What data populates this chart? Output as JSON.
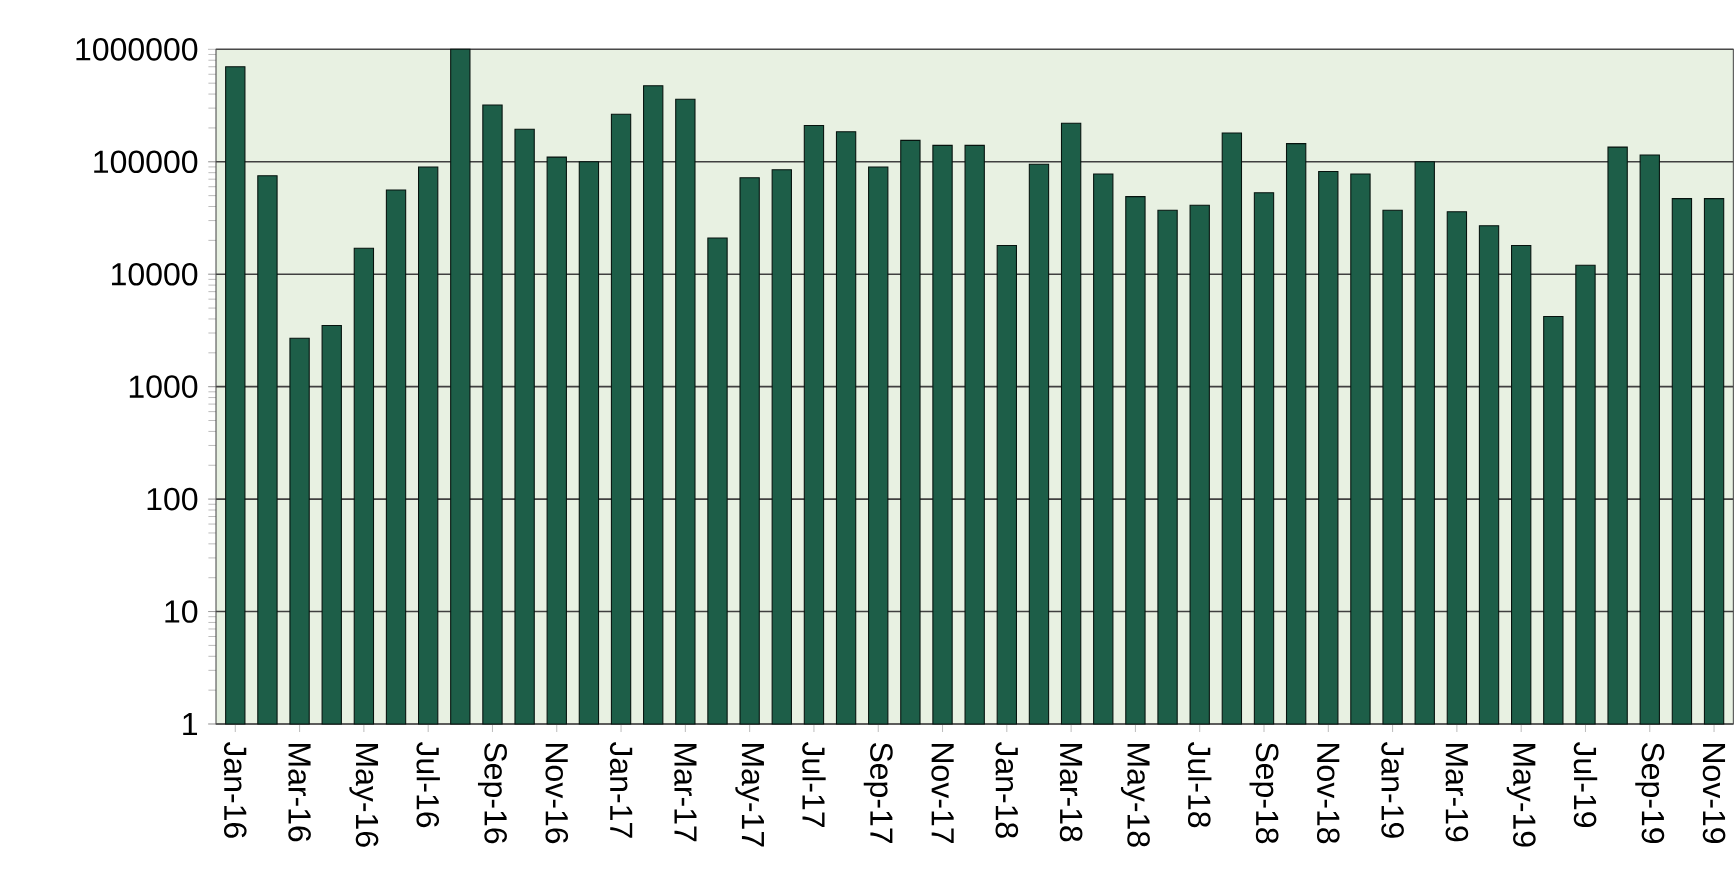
{
  "chart_data": {
    "type": "bar",
    "log": "y",
    "grid": "y",
    "color": "#1d5e48",
    "categories": [
      "Jan-16",
      null,
      "Mar-16",
      null,
      "May-16",
      null,
      "Jul-16",
      null,
      "Sep-16",
      null,
      "Nov-16",
      null,
      "Jan-17",
      null,
      "Mar-17",
      null,
      "May-17",
      null,
      "Jul-17",
      null,
      "Sep-17",
      null,
      "Nov-17",
      null,
      "Jan-18",
      null,
      "Mar-18",
      null,
      "May-18",
      null,
      "Jul-18",
      null,
      "Sep-18",
      null,
      "Nov-18",
      null,
      "Jan-19",
      null,
      "Mar-19",
      null,
      "May-19",
      null,
      "Jul-19",
      null,
      "Sep-19",
      null,
      "Nov-19"
    ],
    "values": [
      700000,
      75000,
      2700,
      3500,
      17000,
      56000,
      90000,
      1000000,
      320000,
      195000,
      110000,
      100000,
      265000,
      475000,
      360000,
      21000,
      72000,
      85000,
      210000,
      185000,
      90000,
      155000,
      140000,
      140000,
      18000,
      95000,
      220000,
      78000,
      49000,
      37000,
      41000,
      180000,
      53000,
      145000,
      82000,
      78000,
      37000,
      100000,
      36000,
      27000,
      18000,
      4200,
      12000,
      135000,
      115000,
      47000,
      47000
    ],
    "ylim": [
      1,
      1000000
    ],
    "yticks": [
      1,
      10,
      100,
      1000,
      10000,
      100000,
      1000000
    ]
  }
}
